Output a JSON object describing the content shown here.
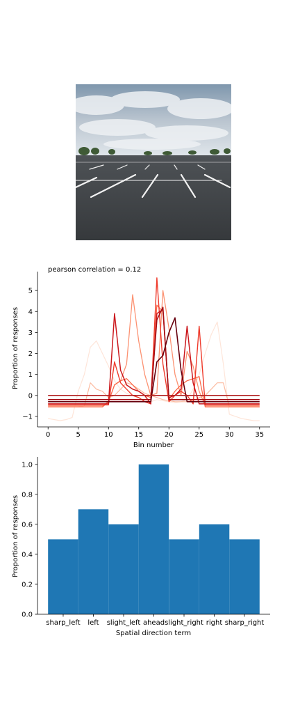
{
  "photo": {
    "alt": "Empty asphalt parking lot with white painted lines under a cloudy sky"
  },
  "chart_data": [
    {
      "type": "line",
      "title": "pearson correlation = 0.12",
      "xlabel": "Bin number",
      "ylabel": "Proportion of responses",
      "xlim": [
        -1.75,
        36.75
      ],
      "ylim": [
        -1.5,
        5.9
      ],
      "xticks": [
        0,
        5,
        10,
        15,
        20,
        25,
        30,
        35
      ],
      "yticks": [
        -1,
        0,
        1,
        2,
        3,
        4,
        5
      ],
      "grid": false,
      "legend": "none",
      "colormap": "Reds",
      "series": [
        {
          "color": "#fee5d9",
          "width": 1.2,
          "x": [
            0,
            1,
            2,
            3,
            4,
            5,
            6,
            7,
            8,
            9,
            10,
            11,
            12,
            13,
            14,
            15,
            16,
            17,
            18,
            19,
            20,
            21,
            22,
            23,
            24,
            25,
            26,
            27,
            28,
            29,
            30,
            31,
            32,
            33,
            34,
            35
          ],
          "y": [
            -1.1,
            -1.15,
            -1.2,
            -1.15,
            -1.05,
            0.2,
            1.0,
            2.3,
            2.6,
            2.0,
            1.4,
            0.7,
            0.3,
            0.1,
            0.0,
            -0.1,
            -0.2,
            -0.3,
            -0.2,
            -0.25,
            -0.3,
            -0.35,
            -0.3,
            -0.2,
            0.3,
            1.0,
            2.0,
            2.9,
            3.5,
            1.5,
            -0.9,
            -1.0,
            -1.1,
            -1.15,
            -1.2,
            -1.2
          ]
        },
        {
          "color": "#fcbba1",
          "width": 1.2,
          "x": [
            0,
            1,
            2,
            3,
            4,
            5,
            6,
            7,
            8,
            9,
            10,
            11,
            12,
            13,
            14,
            15,
            16,
            17,
            18,
            19,
            20,
            21,
            22,
            23,
            24,
            25,
            26,
            27,
            28,
            29,
            30,
            31,
            32,
            33,
            34,
            35
          ],
          "y": [
            -0.55,
            -0.55,
            -0.55,
            -0.55,
            -0.55,
            -0.55,
            -0.5,
            0.6,
            0.3,
            0.2,
            -0.1,
            0.0,
            0.3,
            0.6,
            0.5,
            0.3,
            0.1,
            0.0,
            -0.1,
            -0.2,
            -0.25,
            -0.3,
            -0.3,
            -0.3,
            -0.25,
            -0.1,
            0.0,
            0.3,
            0.6,
            0.6,
            -0.55,
            -0.55,
            -0.55,
            -0.55,
            -0.55,
            -0.55
          ]
        },
        {
          "color": "#fc9272",
          "width": 1.3,
          "x": [
            0,
            1,
            2,
            3,
            4,
            5,
            6,
            7,
            8,
            9,
            10,
            11,
            12,
            13,
            14,
            15,
            16,
            17,
            18,
            19,
            20,
            21,
            22,
            23,
            24,
            25,
            26,
            27,
            28,
            29,
            30,
            31,
            32,
            33,
            34,
            35
          ],
          "y": [
            -0.5,
            -0.5,
            -0.5,
            -0.5,
            -0.5,
            -0.5,
            -0.5,
            -0.5,
            -0.5,
            -0.5,
            -0.3,
            0.5,
            0.7,
            1.5,
            4.8,
            2.6,
            1.0,
            0.0,
            0.1,
            5.0,
            3.2,
            1.0,
            0.0,
            2.1,
            1.4,
            0.2,
            -0.5,
            -0.5,
            -0.5,
            -0.5,
            -0.5,
            -0.5,
            -0.5,
            -0.5,
            -0.5,
            -0.5
          ]
        },
        {
          "color": "#fb6a4a",
          "width": 1.3,
          "x": [
            0,
            1,
            2,
            3,
            4,
            5,
            6,
            7,
            8,
            9,
            10,
            11,
            12,
            13,
            14,
            15,
            16,
            17,
            18,
            19,
            20,
            21,
            22,
            23,
            24,
            25,
            26,
            27,
            28,
            29,
            30,
            31,
            32,
            33,
            34,
            35
          ],
          "y": [
            -0.55,
            -0.55,
            -0.55,
            -0.55,
            -0.55,
            -0.55,
            -0.55,
            -0.55,
            -0.55,
            -0.55,
            -0.3,
            0.5,
            0.7,
            0.8,
            0.5,
            0.2,
            0.0,
            -0.1,
            4.3,
            4.0,
            -0.2,
            0.2,
            0.5,
            0.7,
            0.8,
            0.9,
            -0.55,
            -0.55,
            -0.55,
            -0.55,
            -0.55,
            -0.55,
            -0.55,
            -0.55,
            -0.55,
            -0.55
          ]
        },
        {
          "color": "#ef3b2c",
          "width": 1.4,
          "x": [
            0,
            1,
            2,
            3,
            4,
            5,
            6,
            7,
            8,
            9,
            10,
            11,
            12,
            13,
            14,
            15,
            16,
            17,
            18,
            19,
            20,
            21,
            22,
            23,
            24,
            25,
            26,
            27,
            28,
            29,
            30,
            31,
            32,
            33,
            34,
            35
          ],
          "y": [
            -0.45,
            -0.45,
            -0.45,
            -0.45,
            -0.45,
            -0.45,
            -0.45,
            -0.45,
            -0.45,
            -0.45,
            -0.45,
            1.6,
            0.6,
            0.3,
            0.0,
            -0.1,
            -0.3,
            -0.4,
            5.6,
            1.5,
            -0.3,
            0.0,
            0.2,
            0.0,
            -0.4,
            3.3,
            -0.45,
            -0.45,
            -0.45,
            -0.45,
            -0.45,
            -0.45,
            -0.45,
            -0.45,
            -0.45,
            -0.45
          ]
        },
        {
          "color": "#cb181d",
          "width": 1.5,
          "x": [
            0,
            1,
            2,
            3,
            4,
            5,
            6,
            7,
            8,
            9,
            10,
            11,
            12,
            13,
            14,
            15,
            16,
            17,
            18,
            19,
            20,
            21,
            22,
            23,
            24,
            25,
            26,
            27,
            28,
            29,
            30,
            31,
            32,
            33,
            34,
            35
          ],
          "y": [
            -0.4,
            -0.4,
            -0.4,
            -0.4,
            -0.4,
            -0.4,
            -0.4,
            -0.4,
            -0.4,
            -0.4,
            -0.4,
            3.9,
            1.2,
            0.5,
            0.3,
            0.2,
            0.0,
            -0.4,
            3.9,
            4.1,
            -0.1,
            0.0,
            0.3,
            3.3,
            0.6,
            -0.4,
            -0.4,
            -0.4,
            -0.4,
            -0.4,
            -0.4,
            -0.4,
            -0.4,
            -0.4,
            -0.4,
            -0.4
          ]
        },
        {
          "color": "#a50f15",
          "width": 1.6,
          "x": [
            0,
            1,
            2,
            3,
            4,
            5,
            6,
            7,
            8,
            9,
            10,
            11,
            12,
            13,
            14,
            15,
            16,
            17,
            18,
            19,
            20,
            21,
            22,
            23,
            24,
            25,
            26,
            27,
            28,
            29,
            30,
            31,
            32,
            33,
            34,
            35
          ],
          "y": [
            -0.2,
            -0.2,
            -0.2,
            -0.2,
            -0.2,
            -0.2,
            -0.2,
            -0.2,
            -0.2,
            -0.2,
            -0.2,
            -0.2,
            -0.2,
            -0.2,
            -0.2,
            -0.2,
            -0.2,
            -0.2,
            3.6,
            4.2,
            -0.2,
            -0.2,
            -0.2,
            -0.2,
            -0.2,
            -0.2,
            -0.2,
            -0.2,
            -0.2,
            -0.2,
            -0.2,
            -0.2,
            -0.2,
            -0.2,
            -0.2,
            -0.2
          ]
        },
        {
          "color": "#67000d",
          "width": 1.6,
          "x": [
            0,
            1,
            2,
            3,
            4,
            5,
            6,
            7,
            8,
            9,
            10,
            11,
            12,
            13,
            14,
            15,
            16,
            17,
            18,
            19,
            20,
            21,
            22,
            23,
            24,
            25,
            26,
            27,
            28,
            29,
            30,
            31,
            32,
            33,
            34,
            35
          ],
          "y": [
            -0.3,
            -0.3,
            -0.3,
            -0.3,
            -0.3,
            -0.3,
            -0.3,
            -0.3,
            -0.3,
            -0.3,
            -0.3,
            -0.3,
            -0.3,
            -0.3,
            -0.3,
            -0.3,
            -0.3,
            -0.3,
            1.6,
            1.9,
            3.0,
            3.7,
            1.2,
            -0.3,
            -0.3,
            -0.3,
            -0.3,
            -0.3,
            -0.3,
            -0.3,
            -0.3,
            -0.3,
            -0.3,
            -0.3,
            -0.3,
            -0.3
          ]
        },
        {
          "color": "#b22222",
          "width": 1.6,
          "x": [
            0,
            35
          ],
          "y": [
            0.0,
            0.0
          ]
        }
      ]
    },
    {
      "type": "bar",
      "title": "",
      "xlabel": "Spatial direction term",
      "ylabel": "Proportion of responses",
      "categories": [
        "sharp_left",
        "left",
        "slight_left",
        "ahead",
        "slight_right",
        "right",
        "sharp_right"
      ],
      "values": [
        0.5,
        0.7,
        0.6,
        1.0,
        0.5,
        0.6,
        0.5
      ],
      "ylim": [
        0,
        1.05
      ],
      "yticks": [
        0.0,
        0.2,
        0.4,
        0.6,
        0.8,
        1.0
      ],
      "ytick_labels": [
        "0.0",
        "0.2",
        "0.4",
        "0.6",
        "0.8",
        "1.0"
      ],
      "bar_color": "#1f77b4",
      "grid": false,
      "legend": "none"
    }
  ]
}
